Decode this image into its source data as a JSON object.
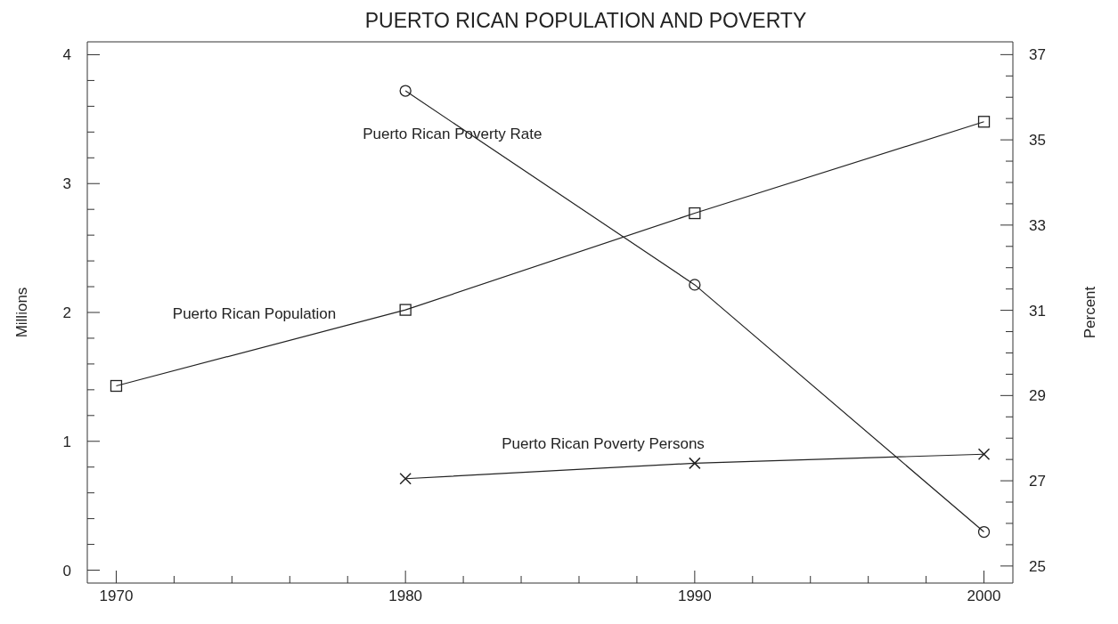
{
  "chart_data": {
    "type": "line",
    "title": "PUERTO RICAN POPULATION AND POVERTY",
    "ylabel": "Millions",
    "y2label": "Percent",
    "x": [
      1970,
      1980,
      1990,
      2000
    ],
    "series": [
      {
        "name": "Puerto Rican Population",
        "color": "#222222",
        "marker": "square",
        "values": [
          1.43,
          2.02,
          2.77,
          3.48
        ]
      },
      {
        "name": "Puerto Rican Poverty Persons",
        "color": "#222222",
        "marker": "cross",
        "values": [
          null,
          0.71,
          0.83,
          0.9
        ]
      },
      {
        "name": "Puerto Rican Poverty Rate",
        "color": "#222222",
        "marker": "circle",
        "axis": "y2",
        "values": [
          null,
          36.15,
          31.6,
          25.8
        ]
      }
    ],
    "xlim": [
      1969,
      2001
    ],
    "xticks": [
      1970,
      {
        "value": 1972,
        "label": null
      },
      {
        "value": 1974,
        "label": null
      },
      {
        "value": 1976,
        "label": null
      },
      {
        "value": 1978,
        "label": null
      },
      1980,
      {
        "value": 1982,
        "label": null
      },
      {
        "value": 1984,
        "label": null
      },
      {
        "value": 1986,
        "label": null
      },
      {
        "value": 1988,
        "label": null
      },
      1990,
      {
        "value": 1992,
        "label": null
      },
      {
        "value": 1994,
        "label": null
      },
      {
        "value": 1996,
        "label": null
      },
      {
        "value": 1998,
        "label": null
      },
      2000
    ],
    "ylim": [
      -0.1,
      4.1
    ],
    "yticks": [
      0,
      {
        "value": 0.2,
        "label": null
      },
      {
        "value": 0.4,
        "label": null
      },
      {
        "value": 0.6,
        "label": null
      },
      {
        "value": 0.8,
        "label": null
      },
      1,
      {
        "value": 1.2,
        "label": null
      },
      {
        "value": 1.4,
        "label": null
      },
      {
        "value": 1.6,
        "label": null
      },
      {
        "value": 1.8,
        "label": null
      },
      2,
      {
        "value": 2.2,
        "label": null
      },
      {
        "value": 2.4,
        "label": null
      },
      {
        "value": 2.6,
        "label": null
      },
      {
        "value": 2.8,
        "label": null
      },
      3,
      {
        "value": 3.2,
        "label": null
      },
      {
        "value": 3.4,
        "label": null
      },
      {
        "value": 3.6,
        "label": null
      },
      {
        "value": 3.8,
        "label": null
      },
      4
    ],
    "y2lim": [
      24.6,
      37.3
    ],
    "y2ticks": [
      25,
      {
        "value": 25.5,
        "label": null
      },
      {
        "value": 26,
        "label": null
      },
      {
        "value": 26.5,
        "label": null
      },
      27,
      {
        "value": 27.5,
        "label": null
      },
      {
        "value": 28,
        "label": null
      },
      {
        "value": 28.5,
        "label": null
      },
      29,
      {
        "value": 29.5,
        "label": null
      },
      {
        "value": 30,
        "label": null
      },
      {
        "value": 30.5,
        "label": null
      },
      31,
      {
        "value": 31.5,
        "label": null
      },
      {
        "value": 32,
        "label": null
      },
      {
        "value": 32.5,
        "label": null
      },
      33,
      {
        "value": 33.5,
        "label": null
      },
      {
        "value": 34,
        "label": null
      },
      {
        "value": 34.5,
        "label": null
      },
      35,
      {
        "value": 35.5,
        "label": null
      },
      {
        "value": 36,
        "label": null
      },
      {
        "value": 36.5,
        "label": null
      },
      37
    ],
    "grid": false,
    "legend": false,
    "line_style": "solid"
  }
}
